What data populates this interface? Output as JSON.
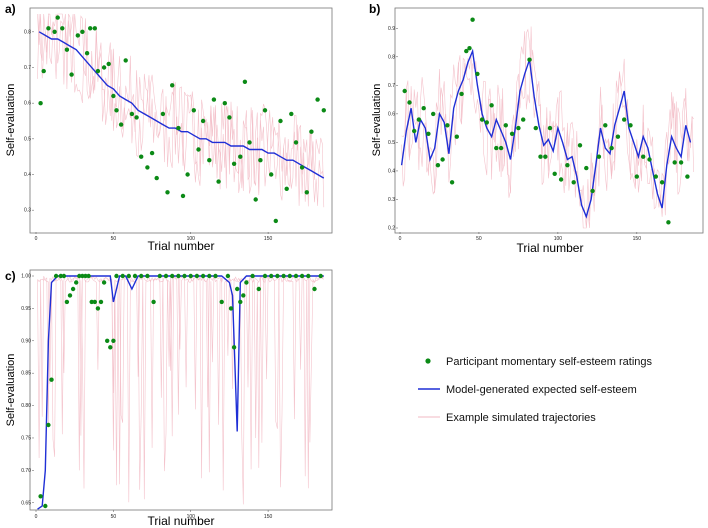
{
  "colors": {
    "points": "#0b8a16",
    "model": "#1f2fd6",
    "sim": "#f2b9c3",
    "frame": "#555555"
  },
  "legend": {
    "points": "Participant momentary self-esteem ratings",
    "model": "Model-generated expected self-esteem",
    "sim": "Example simulated trajectories"
  },
  "chart_data": [
    {
      "type": "line",
      "panel": "a)",
      "xlabel": "Trial number",
      "ylabel": "Self-evaluation",
      "xlim": [
        0,
        190
      ],
      "ylim": [
        0.25,
        0.85
      ],
      "xticks": [
        {
          "v": 0,
          "label": "0"
        },
        {
          "v": 50,
          "label": "50"
        },
        {
          "v": 100,
          "label": "100"
        },
        {
          "v": 150,
          "label": "150"
        }
      ],
      "yticks": [
        {
          "v": 0.3,
          "label": "0.3"
        },
        {
          "v": 0.4,
          "label": "0.4"
        },
        {
          "v": 0.5,
          "label": "0.5"
        },
        {
          "v": 0.6,
          "label": "0.6"
        },
        {
          "v": 0.7,
          "label": "0.7"
        },
        {
          "v": 0.8,
          "label": "0.8"
        }
      ],
      "series": [
        {
          "name": "Model-generated expected self-esteem",
          "x": [
            2,
            6,
            10,
            14,
            18,
            22,
            26,
            30,
            34,
            38,
            42,
            46,
            50,
            54,
            58,
            62,
            66,
            70,
            74,
            78,
            82,
            86,
            90,
            94,
            98,
            102,
            106,
            110,
            114,
            118,
            122,
            126,
            130,
            134,
            138,
            142,
            146,
            150,
            154,
            158,
            162,
            166,
            170,
            174,
            178,
            182,
            186
          ],
          "y": [
            0.8,
            0.79,
            0.78,
            0.78,
            0.77,
            0.76,
            0.75,
            0.73,
            0.71,
            0.69,
            0.67,
            0.65,
            0.64,
            0.62,
            0.61,
            0.6,
            0.58,
            0.57,
            0.56,
            0.55,
            0.54,
            0.53,
            0.53,
            0.52,
            0.52,
            0.51,
            0.5,
            0.5,
            0.49,
            0.49,
            0.49,
            0.48,
            0.48,
            0.48,
            0.47,
            0.47,
            0.47,
            0.46,
            0.46,
            0.45,
            0.44,
            0.44,
            0.43,
            0.42,
            0.41,
            0.4,
            0.39
          ]
        },
        {
          "name": "Participant momentary self-esteem ratings",
          "x": [
            3,
            5,
            8,
            12,
            14,
            17,
            20,
            23,
            27,
            30,
            33,
            35,
            38,
            40,
            44,
            47,
            50,
            52,
            55,
            58,
            62,
            65,
            68,
            72,
            75,
            78,
            82,
            85,
            88,
            92,
            95,
            98,
            102,
            105,
            108,
            112,
            115,
            118,
            122,
            125,
            128,
            132,
            135,
            138,
            142,
            145,
            148,
            152,
            155,
            158,
            162,
            165,
            168,
            172,
            175,
            178,
            182,
            186
          ],
          "y": [
            0.6,
            0.69,
            0.81,
            0.8,
            0.84,
            0.81,
            0.75,
            0.68,
            0.79,
            0.8,
            0.74,
            0.81,
            0.81,
            0.69,
            0.7,
            0.71,
            0.62,
            0.58,
            0.54,
            0.72,
            0.57,
            0.56,
            0.45,
            0.42,
            0.46,
            0.39,
            0.57,
            0.35,
            0.65,
            0.53,
            0.34,
            0.4,
            0.58,
            0.47,
            0.55,
            0.44,
            0.61,
            0.38,
            0.6,
            0.56,
            0.43,
            0.45,
            0.66,
            0.49,
            0.33,
            0.44,
            0.58,
            0.4,
            0.27,
            0.55,
            0.36,
            0.57,
            0.49,
            0.42,
            0.35,
            0.52,
            0.61,
            0.58
          ],
          "style": "points"
        }
      ]
    },
    {
      "type": "line",
      "panel": "b)",
      "xlabel": "Trial number",
      "ylabel": "Self-evaluation",
      "xlim": [
        0,
        190
      ],
      "ylim": [
        0.2,
        0.95
      ],
      "xticks": [
        {
          "v": 0,
          "label": "0"
        },
        {
          "v": 50,
          "label": "50"
        },
        {
          "v": 100,
          "label": "100"
        },
        {
          "v": 150,
          "label": "150"
        }
      ],
      "yticks": [
        {
          "v": 0.2,
          "label": "0.2"
        },
        {
          "v": 0.3,
          "label": "0.3"
        },
        {
          "v": 0.4,
          "label": "0.4"
        },
        {
          "v": 0.5,
          "label": "0.5"
        },
        {
          "v": 0.6,
          "label": "0.6"
        },
        {
          "v": 0.7,
          "label": "0.7"
        },
        {
          "v": 0.8,
          "label": "0.8"
        },
        {
          "v": 0.9,
          "label": "0.9"
        }
      ],
      "series": [
        {
          "name": "Model-generated expected self-esteem",
          "x": [
            1,
            4,
            7,
            10,
            13,
            16,
            19,
            22,
            25,
            28,
            31,
            34,
            37,
            40,
            43,
            46,
            49,
            52,
            55,
            58,
            61,
            64,
            67,
            70,
            73,
            76,
            79,
            82,
            85,
            88,
            91,
            94,
            97,
            100,
            103,
            106,
            109,
            112,
            115,
            118,
            121,
            124,
            127,
            130,
            133,
            136,
            139,
            142,
            145,
            148,
            151,
            154,
            157,
            160,
            163,
            166,
            169,
            172,
            175,
            178,
            181,
            184
          ],
          "y": [
            0.42,
            0.54,
            0.62,
            0.5,
            0.58,
            0.55,
            0.44,
            0.48,
            0.6,
            0.57,
            0.46,
            0.62,
            0.68,
            0.72,
            0.78,
            0.82,
            0.7,
            0.6,
            0.55,
            0.52,
            0.58,
            0.54,
            0.5,
            0.44,
            0.55,
            0.68,
            0.74,
            0.79,
            0.66,
            0.56,
            0.49,
            0.51,
            0.47,
            0.55,
            0.5,
            0.44,
            0.45,
            0.38,
            0.28,
            0.24,
            0.3,
            0.42,
            0.55,
            0.48,
            0.46,
            0.56,
            0.62,
            0.68,
            0.55,
            0.5,
            0.45,
            0.52,
            0.48,
            0.4,
            0.32,
            0.27,
            0.42,
            0.52,
            0.48,
            0.45,
            0.56,
            0.5
          ]
        },
        {
          "name": "Participant momentary self-esteem ratings",
          "x": [
            3,
            6,
            9,
            12,
            15,
            18,
            21,
            24,
            27,
            30,
            33,
            36,
            39,
            42,
            44,
            46,
            49,
            52,
            55,
            58,
            61,
            64,
            67,
            71,
            75,
            78,
            82,
            86,
            89,
            92,
            95,
            98,
            102,
            106,
            110,
            114,
            118,
            122,
            126,
            130,
            134,
            138,
            142,
            146,
            150,
            154,
            158,
            162,
            166,
            170,
            174,
            178,
            182
          ],
          "y": [
            0.68,
            0.64,
            0.54,
            0.58,
            0.62,
            0.53,
            0.6,
            0.42,
            0.44,
            0.56,
            0.36,
            0.52,
            0.67,
            0.82,
            0.83,
            0.93,
            0.74,
            0.58,
            0.57,
            0.63,
            0.48,
            0.48,
            0.56,
            0.53,
            0.55,
            0.58,
            0.79,
            0.55,
            0.45,
            0.45,
            0.55,
            0.39,
            0.37,
            0.42,
            0.36,
            0.49,
            0.41,
            0.33,
            0.45,
            0.56,
            0.48,
            0.52,
            0.58,
            0.56,
            0.38,
            0.45,
            0.44,
            0.38,
            0.36,
            0.22,
            0.43,
            0.43,
            0.38
          ],
          "style": "points"
        }
      ]
    },
    {
      "type": "line",
      "panel": "c)",
      "xlabel": "Trial number",
      "ylabel": "Self-evaluation",
      "xlim": [
        0,
        190
      ],
      "ylim": [
        0.645,
        1.0
      ],
      "xticks": [
        {
          "v": 0,
          "label": "0"
        },
        {
          "v": 50,
          "label": "50"
        },
        {
          "v": 100,
          "label": "100"
        },
        {
          "v": 150,
          "label": "150"
        }
      ],
      "yticks": [
        {
          "v": 0.65,
          "label": "0.65"
        },
        {
          "v": 0.7,
          "label": "0.70"
        },
        {
          "v": 0.75,
          "label": "0.75"
        },
        {
          "v": 0.8,
          "label": "0.80"
        },
        {
          "v": 0.85,
          "label": "0.85"
        },
        {
          "v": 0.9,
          "label": "0.90"
        },
        {
          "v": 0.95,
          "label": "0.95"
        },
        {
          "v": 1.0,
          "label": "1.00"
        }
      ],
      "series": [
        {
          "name": "Model-generated expected self-esteem",
          "x": [
            1,
            4,
            6,
            8,
            10,
            14,
            20,
            30,
            40,
            48,
            50,
            52,
            54,
            58,
            62,
            64,
            66,
            70,
            80,
            90,
            100,
            110,
            120,
            125,
            127,
            128,
            130,
            132,
            136,
            140,
            150,
            160,
            170,
            180,
            186
          ],
          "y": [
            0.64,
            0.645,
            0.7,
            0.9,
            0.99,
            1.0,
            1.0,
            1.0,
            1.0,
            1.0,
            0.96,
            0.98,
            1.0,
            1.0,
            0.98,
            0.99,
            1.0,
            1.0,
            1.0,
            1.0,
            1.0,
            1.0,
            1.0,
            0.99,
            0.97,
            0.9,
            0.76,
            0.99,
            1.0,
            1.0,
            1.0,
            1.0,
            1.0,
            1.0,
            1.0
          ]
        },
        {
          "name": "Participant momentary self-esteem ratings",
          "x": [
            3,
            6,
            8,
            10,
            13,
            16,
            18,
            20,
            22,
            24,
            26,
            28,
            30,
            32,
            34,
            36,
            38,
            40,
            42,
            44,
            46,
            48,
            50,
            52,
            56,
            60,
            64,
            68,
            72,
            76,
            80,
            84,
            88,
            92,
            96,
            100,
            104,
            108,
            112,
            116,
            120,
            124,
            126,
            128,
            130,
            132,
            134,
            136,
            140,
            144,
            148,
            152,
            156,
            160,
            164,
            168,
            172,
            176,
            180,
            184
          ],
          "y": [
            0.66,
            0.645,
            0.77,
            0.84,
            1.0,
            1.0,
            1.0,
            0.96,
            0.97,
            0.98,
            0.99,
            1.0,
            1.0,
            1.0,
            1.0,
            0.96,
            0.96,
            0.95,
            0.96,
            0.99,
            0.9,
            0.89,
            0.9,
            1.0,
            1.0,
            1.0,
            1.0,
            1.0,
            1.0,
            0.96,
            1.0,
            1.0,
            1.0,
            1.0,
            1.0,
            1.0,
            1.0,
            1.0,
            1.0,
            1.0,
            0.96,
            1.0,
            0.95,
            0.89,
            0.98,
            0.96,
            0.97,
            0.99,
            1.0,
            0.98,
            1.0,
            1.0,
            1.0,
            1.0,
            1.0,
            1.0,
            1.0,
            1.0,
            0.98,
            1.0
          ],
          "style": "points"
        }
      ]
    }
  ]
}
